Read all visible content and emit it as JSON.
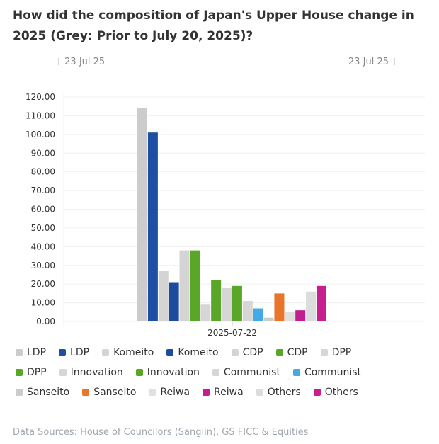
{
  "title": "How did the composition of Japan's Upper House change in 2025 (Grey: Prior to July 20, 2025)?",
  "range_selector": {
    "start": "23 Jul 25",
    "end": "23 Jul 25"
  },
  "source": "Data Sources: House of Councilors (Sangiin), GS FICC & Equities",
  "chart_data": {
    "type": "bar",
    "title": "How did the composition of Japan's Upper House change in 2025 (Grey: Prior to July 20, 2025)?",
    "xlabel": "",
    "ylabel": "",
    "categories": [
      "2025-07-22"
    ],
    "ylim": [
      0,
      120
    ],
    "yticks": [
      "0.00",
      "10.00",
      "20.00",
      "30.00",
      "40.00",
      "50.00",
      "60.00",
      "70.00",
      "80.00",
      "90.00",
      "100.00",
      "110.00",
      "120.00"
    ],
    "ytick_values": [
      0,
      10,
      20,
      30,
      40,
      50,
      60,
      70,
      80,
      90,
      100,
      110,
      120
    ],
    "grid": true,
    "legend_position": "bottom",
    "series": [
      {
        "name": "LDP",
        "period": "prior",
        "color": "#cccccc",
        "values": [
          114
        ]
      },
      {
        "name": "LDP",
        "period": "after",
        "color": "#1e4fa3",
        "values": [
          101
        ]
      },
      {
        "name": "Komeito",
        "period": "prior",
        "color": "#d4d4d4",
        "values": [
          27
        ]
      },
      {
        "name": "Komeito",
        "period": "after",
        "color": "#1d4c9e",
        "values": [
          21
        ]
      },
      {
        "name": "CDP",
        "period": "prior",
        "color": "#d4d4d4",
        "values": [
          38
        ]
      },
      {
        "name": "CDP",
        "period": "after",
        "color": "#5aa629",
        "values": [
          38
        ]
      },
      {
        "name": "DPP",
        "period": "prior",
        "color": "#d6d6d6",
        "values": [
          9
        ]
      },
      {
        "name": "DPP",
        "period": "after",
        "color": "#5aa629",
        "values": [
          22
        ]
      },
      {
        "name": "Innovation",
        "period": "prior",
        "color": "#d6d6d6",
        "values": [
          18
        ]
      },
      {
        "name": "Innovation",
        "period": "after",
        "color": "#5aa629",
        "values": [
          19
        ]
      },
      {
        "name": "Communist",
        "period": "prior",
        "color": "#d6d6d6",
        "values": [
          11
        ]
      },
      {
        "name": "Communist",
        "period": "after",
        "color": "#45a9e6",
        "values": [
          7
        ]
      },
      {
        "name": "Sanseito",
        "period": "prior",
        "color": "#cccccc",
        "values": [
          2
        ]
      },
      {
        "name": "Sanseito",
        "period": "after",
        "color": "#e8752b",
        "values": [
          15
        ]
      },
      {
        "name": "Reiwa",
        "period": "prior",
        "color": "#e0e0e0",
        "values": [
          5
        ]
      },
      {
        "name": "Reiwa",
        "period": "after",
        "color": "#c0208f",
        "values": [
          6
        ]
      },
      {
        "name": "Others",
        "period": "prior",
        "color": "#dcdcdc",
        "values": [
          16
        ]
      },
      {
        "name": "Others",
        "period": "after",
        "color": "#c81f8e",
        "values": [
          19
        ]
      }
    ]
  }
}
